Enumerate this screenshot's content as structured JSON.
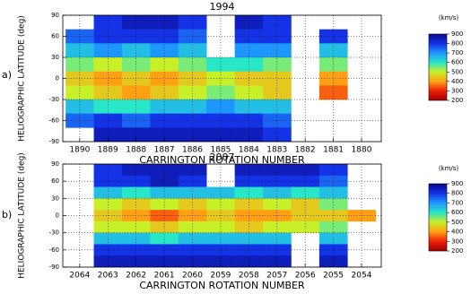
{
  "chart_data": [
    {
      "type": "heatmap",
      "title": "1994",
      "panel_label": "a)",
      "xlabel": "CARRINGTON ROTATION NUMBER",
      "ylabel": "HELIOGRAPHIC LATITUDE (deg)",
      "x": [
        1890,
        1889,
        1888,
        1887,
        1886,
        1885,
        1884,
        1883,
        1882,
        1881,
        1880
      ],
      "y": [
        80,
        60,
        40,
        20,
        0,
        -20,
        -40,
        -60,
        -80
      ],
      "z": [
        [
          null,
          800,
          850,
          850,
          800,
          null,
          850,
          800,
          null,
          null,
          null
        ],
        [
          750,
          800,
          800,
          800,
          750,
          null,
          800,
          800,
          null,
          800,
          null
        ],
        [
          650,
          700,
          650,
          700,
          650,
          null,
          700,
          700,
          null,
          650,
          null
        ],
        [
          550,
          500,
          550,
          500,
          550,
          600,
          600,
          550,
          null,
          550,
          null
        ],
        [
          450,
          400,
          450,
          400,
          450,
          500,
          450,
          450,
          null,
          400,
          null
        ],
        [
          500,
          450,
          400,
          450,
          500,
          550,
          500,
          450,
          null,
          350,
          null
        ],
        [
          650,
          600,
          600,
          650,
          650,
          700,
          650,
          650,
          null,
          null,
          null
        ],
        [
          750,
          800,
          750,
          800,
          800,
          800,
          800,
          750,
          null,
          null,
          null
        ],
        [
          null,
          850,
          850,
          850,
          850,
          850,
          850,
          800,
          null,
          null,
          null
        ]
      ],
      "xlim": [
        1890.6,
        1879.3
      ],
      "ylim": [
        -90,
        90
      ],
      "xticks": [
        1890,
        1889,
        1888,
        1887,
        1886,
        1885,
        1884,
        1883,
        1882,
        1881,
        1880
      ],
      "yticks": [
        -90,
        -60,
        -30,
        0,
        30,
        60,
        90
      ],
      "grid": true,
      "colorbar": {
        "label": "(km/s)",
        "ticks": [
          900,
          800,
          700,
          600,
          500,
          400,
          300,
          200
        ],
        "colors": [
          "#0a0a8c",
          "#1432e6",
          "#1e96ff",
          "#28e6c8",
          "#c8f028",
          "#ffa014",
          "#f01e0a",
          "#a00000"
        ]
      }
    },
    {
      "type": "heatmap",
      "title": "2007",
      "panel_label": "b)",
      "xlabel": "CARRINGTON ROTATION NUMBER",
      "ylabel": "HELIOGRAPHIC LATITUDE (deg)",
      "x": [
        2064,
        2063,
        2062,
        2061,
        2060,
        2059,
        2058,
        2057,
        2056,
        2055,
        2054
      ],
      "y": [
        80,
        60,
        40,
        20,
        0,
        -20,
        -40,
        -60,
        -80
      ],
      "z": [
        [
          null,
          800,
          850,
          850,
          850,
          null,
          850,
          850,
          850,
          800,
          null
        ],
        [
          null,
          800,
          800,
          850,
          800,
          null,
          800,
          800,
          800,
          750,
          null
        ],
        [
          null,
          650,
          600,
          650,
          650,
          650,
          600,
          650,
          600,
          650,
          null
        ],
        [
          null,
          500,
          450,
          500,
          450,
          500,
          450,
          500,
          450,
          550,
          null
        ],
        [
          null,
          450,
          400,
          350,
          400,
          450,
          400,
          400,
          450,
          450,
          400
        ],
        [
          null,
          500,
          500,
          450,
          500,
          500,
          450,
          500,
          500,
          550,
          null
        ],
        [
          null,
          650,
          650,
          600,
          650,
          650,
          650,
          650,
          null,
          650,
          null
        ],
        [
          null,
          800,
          800,
          800,
          800,
          800,
          800,
          800,
          null,
          800,
          null
        ],
        [
          null,
          850,
          850,
          850,
          850,
          850,
          850,
          850,
          null,
          850,
          null
        ]
      ],
      "xlim": [
        2064.6,
        2053.3
      ],
      "ylim": [
        -90,
        90
      ],
      "xticks": [
        2064,
        2063,
        2062,
        2061,
        2060,
        2059,
        2058,
        2057,
        2056,
        2055,
        2054
      ],
      "yticks": [
        -90,
        -60,
        -30,
        0,
        30,
        60,
        90
      ],
      "grid": true,
      "colorbar": {
        "label": "(km/s)",
        "ticks": [
          900,
          800,
          700,
          600,
          500,
          400,
          300,
          200
        ],
        "colors": [
          "#0a0a8c",
          "#1432e6",
          "#1e96ff",
          "#28e6c8",
          "#c8f028",
          "#ffa014",
          "#f01e0a",
          "#a00000"
        ]
      }
    }
  ]
}
